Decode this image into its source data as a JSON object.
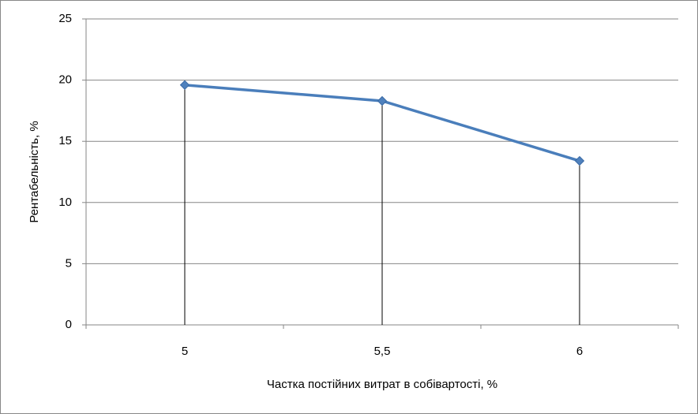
{
  "chart_data": {
    "type": "line",
    "x_label": "Частка постійних витрат в собівартості, %",
    "y_label": "Рентабельність, %",
    "categories": [
      "5",
      "5,5",
      "6"
    ],
    "series": [
      {
        "name": null,
        "color": "#4a7ebb",
        "values": [
          19.6,
          18.3,
          13.4
        ]
      }
    ],
    "ylim": [
      0,
      25
    ],
    "yticks": [
      0,
      5,
      10,
      15,
      20,
      25
    ],
    "grid": true,
    "drop_lines": true,
    "marker": "diamond"
  }
}
